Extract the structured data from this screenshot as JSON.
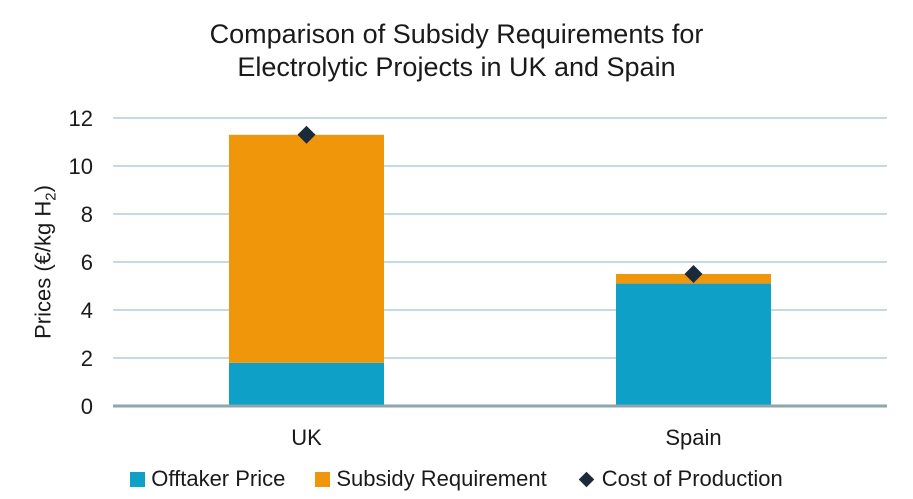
{
  "chart_data": {
    "type": "bar",
    "stacked": true,
    "title_lines": [
      "Comparison of Subsidy Requirements for",
      "Electrolytic Projects in UK and Spain"
    ],
    "ylabel_main": "Prices (€/kg H",
    "ylabel_sub": "2",
    "ylabel_end": ")",
    "categories": [
      "UK",
      "Spain"
    ],
    "series": [
      {
        "name": "Offtaker Price",
        "type": "bar",
        "color": "#0ea0c6",
        "values": [
          1.8,
          5.1
        ]
      },
      {
        "name": "Subsidy Requirement",
        "type": "bar",
        "color": "#f0960a",
        "values": [
          9.5,
          0.4
        ]
      },
      {
        "name": "Cost of Production",
        "type": "marker",
        "color": "#1b2a3a",
        "values": [
          11.3,
          5.5
        ]
      }
    ],
    "ylim": [
      0,
      12
    ],
    "yticks": [
      0,
      2,
      4,
      6,
      8,
      10,
      12
    ],
    "grid": true,
    "legend_position": "bottom"
  }
}
